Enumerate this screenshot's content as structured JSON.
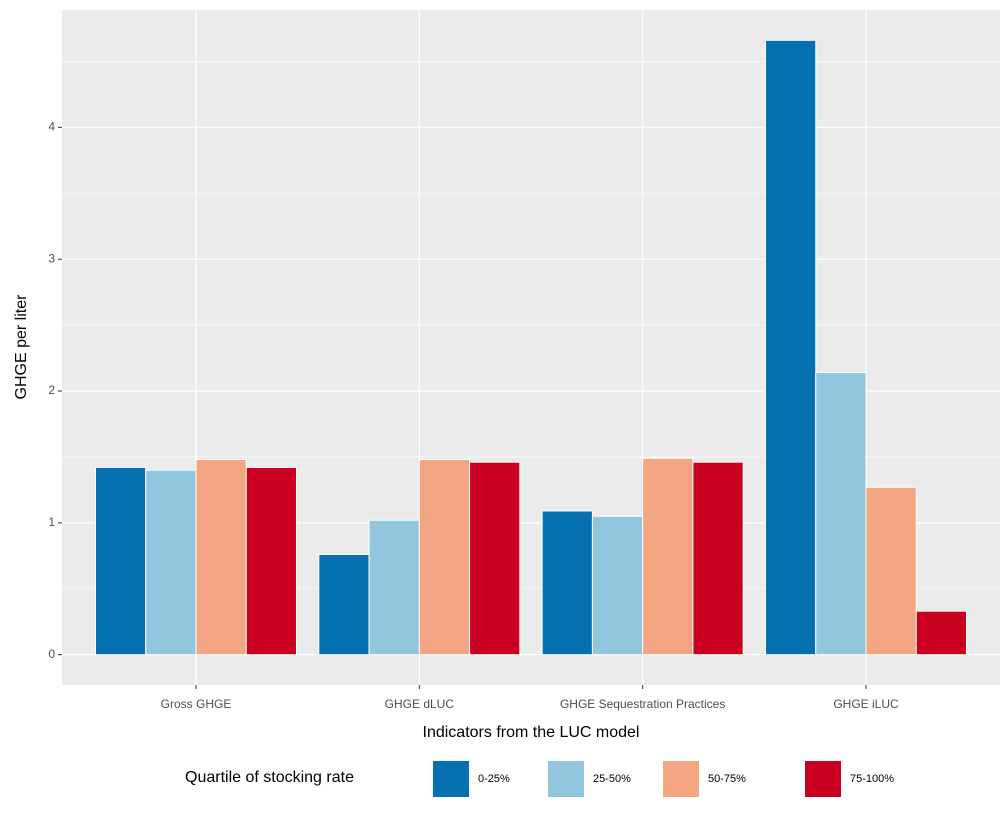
{
  "chart_data": {
    "type": "bar",
    "x_label": "Indicators from the LUC model",
    "y_label": "GHGE per liter",
    "categories": [
      "Gross GHGE",
      "GHGE dLUC",
      "GHGE Sequestration Practices",
      "GHGE iLUC"
    ],
    "series": [
      {
        "name": "0-25%",
        "color": "#0571b0",
        "values": [
          1.42,
          0.76,
          1.09,
          4.66
        ]
      },
      {
        "name": "25-50%",
        "color": "#92c5de",
        "values": [
          1.4,
          1.02,
          1.05,
          2.14
        ]
      },
      {
        "name": "50-75%",
        "color": "#f4a582",
        "values": [
          1.48,
          1.48,
          1.49,
          1.27
        ]
      },
      {
        "name": "75-100%",
        "color": "#ca0020",
        "values": [
          1.42,
          1.46,
          1.46,
          0.33
        ]
      }
    ],
    "legend_title": "Quartile of stocking rate",
    "legend_position": "bottom",
    "ylim": [
      -0.23,
      4.89
    ],
    "yticks": [
      0,
      1,
      2,
      3,
      4
    ],
    "grid": true
  }
}
